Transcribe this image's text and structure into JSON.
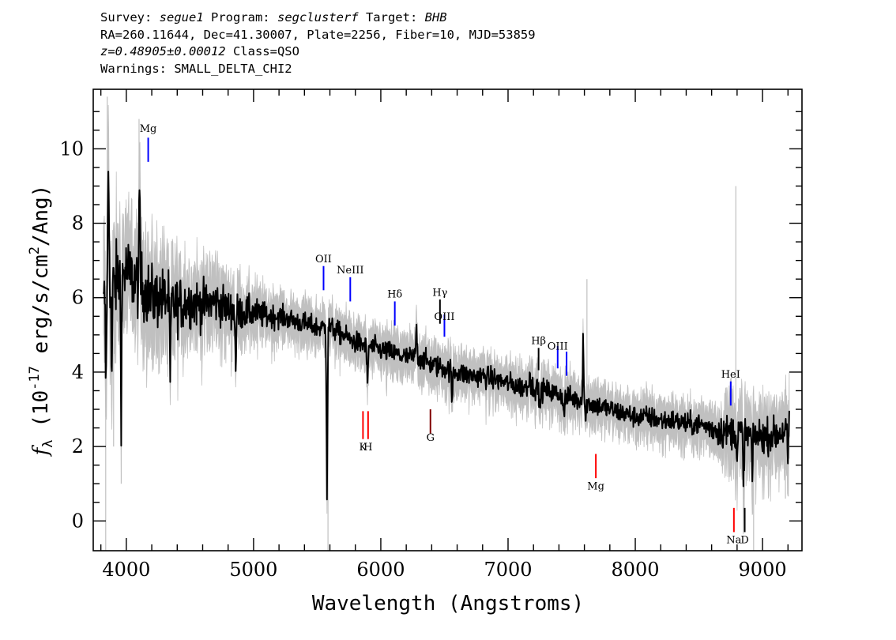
{
  "header": {
    "line1": {
      "survey_label": "Survey: ",
      "survey": "segue1",
      "program_label": " Program: ",
      "program": "segclusterf",
      "target_label": " Target: ",
      "target": "BHB"
    },
    "line2": "RA=260.11644, Dec=41.30007, Plate=2256, Fiber=10, MJD=53859",
    "line3": {
      "redshift": "z=0.48905±0.00012",
      "class": " Class=QSO"
    },
    "line4": "Warnings: SMALL_DELTA_CHI2"
  },
  "chart_data": {
    "type": "line",
    "xlabel": "Wavelength (Angstroms)",
    "ylabel_main": "f",
    "ylabel_sub": "λ",
    "ylabel_units": {
      "open": " (10",
      "exp1": "-17",
      "mid": " erg/s/cm",
      "exp2": "2",
      "close": "/Ang)"
    },
    "xlim": [
      3740,
      9310
    ],
    "ylim": [
      -0.8,
      11.6
    ],
    "xticks": [
      "4000",
      "5000",
      "6000",
      "7000",
      "8000",
      "9000"
    ],
    "yticks": [
      "0",
      "2",
      "4",
      "6",
      "8",
      "10"
    ],
    "colors": {
      "spectrum": "#000000",
      "noise": "#c0c0c0",
      "emission": "#0000ff",
      "absorption": "#ff0000"
    },
    "spectrum_anchors": [
      [
        3820,
        5.6
      ],
      [
        3850,
        6.8
      ],
      [
        3900,
        6.3
      ],
      [
        3950,
        6.6
      ],
      [
        4000,
        6.7
      ],
      [
        4050,
        6.5
      ],
      [
        4100,
        6.4
      ],
      [
        4150,
        6.2
      ],
      [
        4200,
        6.0
      ],
      [
        4300,
        6.0
      ],
      [
        4400,
        5.8
      ],
      [
        4500,
        5.9
      ],
      [
        4600,
        5.8
      ],
      [
        4700,
        5.9
      ],
      [
        4800,
        5.7
      ],
      [
        4900,
        5.6
      ],
      [
        5000,
        5.6
      ],
      [
        5100,
        5.5
      ],
      [
        5200,
        5.5
      ],
      [
        5300,
        5.4
      ],
      [
        5400,
        5.3
      ],
      [
        5500,
        5.2
      ],
      [
        5600,
        5.2
      ],
      [
        5700,
        5.0
      ],
      [
        5800,
        4.8
      ],
      [
        5900,
        4.7
      ],
      [
        6000,
        4.6
      ],
      [
        6100,
        4.5
      ],
      [
        6200,
        4.4
      ],
      [
        6300,
        4.4
      ],
      [
        6400,
        4.2
      ],
      [
        6500,
        4.1
      ],
      [
        6600,
        4.0
      ],
      [
        6700,
        3.9
      ],
      [
        6800,
        3.9
      ],
      [
        6900,
        3.8
      ],
      [
        7000,
        3.7
      ],
      [
        7100,
        3.6
      ],
      [
        7200,
        3.6
      ],
      [
        7300,
        3.5
      ],
      [
        7400,
        3.4
      ],
      [
        7500,
        3.3
      ],
      [
        7600,
        3.2
      ],
      [
        7700,
        3.1
      ],
      [
        7800,
        3.0
      ],
      [
        7900,
        2.9
      ],
      [
        8000,
        2.8
      ],
      [
        8100,
        2.8
      ],
      [
        8200,
        2.7
      ],
      [
        8300,
        2.7
      ],
      [
        8400,
        2.6
      ],
      [
        8500,
        2.6
      ],
      [
        8600,
        2.5
      ],
      [
        8700,
        2.4
      ],
      [
        8800,
        2.4
      ],
      [
        8900,
        2.3
      ],
      [
        9000,
        2.3
      ],
      [
        9100,
        2.3
      ],
      [
        9210,
        2.5
      ]
    ],
    "spectrum_features": [
      [
        3840,
        -3.0
      ],
      [
        3860,
        3.0
      ],
      [
        3885,
        -2.8
      ],
      [
        3960,
        -3.3
      ],
      [
        4105,
        2.6
      ],
      [
        4345,
        -2.3
      ],
      [
        4860,
        -1.6
      ],
      [
        5577,
        -4.5
      ],
      [
        5895,
        -1.2
      ],
      [
        6280,
        0.9
      ],
      [
        6560,
        -1.0
      ],
      [
        7170,
        0.6
      ],
      [
        7250,
        -0.6
      ],
      [
        7440,
        -0.7
      ],
      [
        7590,
        1.9
      ],
      [
        7610,
        -0.5
      ],
      [
        8800,
        -0.9
      ],
      [
        8850,
        -1.4
      ],
      [
        8920,
        -1.2
      ],
      [
        9200,
        -1.0
      ]
    ],
    "noise_spikes": [
      [
        3838,
        -0.9
      ],
      [
        3850,
        11.4
      ],
      [
        3900,
        2.0
      ],
      [
        3960,
        1.0
      ],
      [
        4100,
        10.8
      ],
      [
        5585,
        -0.8
      ],
      [
        7620,
        6.5
      ],
      [
        8790,
        9.0
      ],
      [
        8930,
        -0.8
      ],
      [
        9180,
        0.6
      ]
    ],
    "emission_lines": [
      {
        "label": "Mg",
        "x": 4172,
        "y0": 9.65,
        "y1": 10.3,
        "label_y": 10.45
      },
      {
        "label": "OII",
        "x": 5550,
        "y0": 6.2,
        "y1": 6.85,
        "label_y": 6.95
      },
      {
        "label": "NeIII",
        "x": 5760,
        "y0": 5.9,
        "y1": 6.55,
        "label_y": 6.65
      },
      {
        "label": "Hδ",
        "x": 6110,
        "y0": 5.25,
        "y1": 5.9,
        "label_y": 6.0
      },
      {
        "label": "Hγ",
        "x": 6465,
        "y0": 5.3,
        "y1": 5.95,
        "label_y": 6.05,
        "color": "#000000"
      },
      {
        "label": "OIII",
        "x": 6500,
        "y0": 4.95,
        "y1": 5.55,
        "label_y": 5.4
      },
      {
        "label": "Hβ",
        "x": 7240,
        "y0": 4.05,
        "y1": 4.65,
        "label_y": 4.75,
        "color": "#000000"
      },
      {
        "label": "OIII",
        "x": 7390,
        "y0": 4.1,
        "y1": 4.7,
        "label_y": 4.6
      },
      {
        "label": "",
        "x": 7460,
        "y0": 3.9,
        "y1": 4.55
      },
      {
        "label": "HeI",
        "x": 8750,
        "y0": 3.1,
        "y1": 3.75,
        "label_y": 3.85
      }
    ],
    "absorption_lines": [
      {
        "label": "K",
        "x": 5860,
        "y0": 2.2,
        "y1": 2.95,
        "label_y": 1.9
      },
      {
        "label": "H",
        "x": 5900,
        "y0": 2.2,
        "y1": 2.95,
        "label_y": 1.9
      },
      {
        "label": "G",
        "x": 6390,
        "y0": 2.35,
        "y1": 3.0,
        "label_y": 2.15,
        "color": "#800000"
      },
      {
        "label": "Mg",
        "x": 7690,
        "y0": 1.15,
        "y1": 1.8,
        "label_y": 0.85
      },
      {
        "label": "Na",
        "x": 8775,
        "y0": -0.3,
        "y1": 0.35,
        "label_y": -0.6
      },
      {
        "label": "D",
        "x": 8860,
        "y0": -0.3,
        "y1": 0.35,
        "label_y": -0.6,
        "color": "#000000"
      }
    ]
  }
}
